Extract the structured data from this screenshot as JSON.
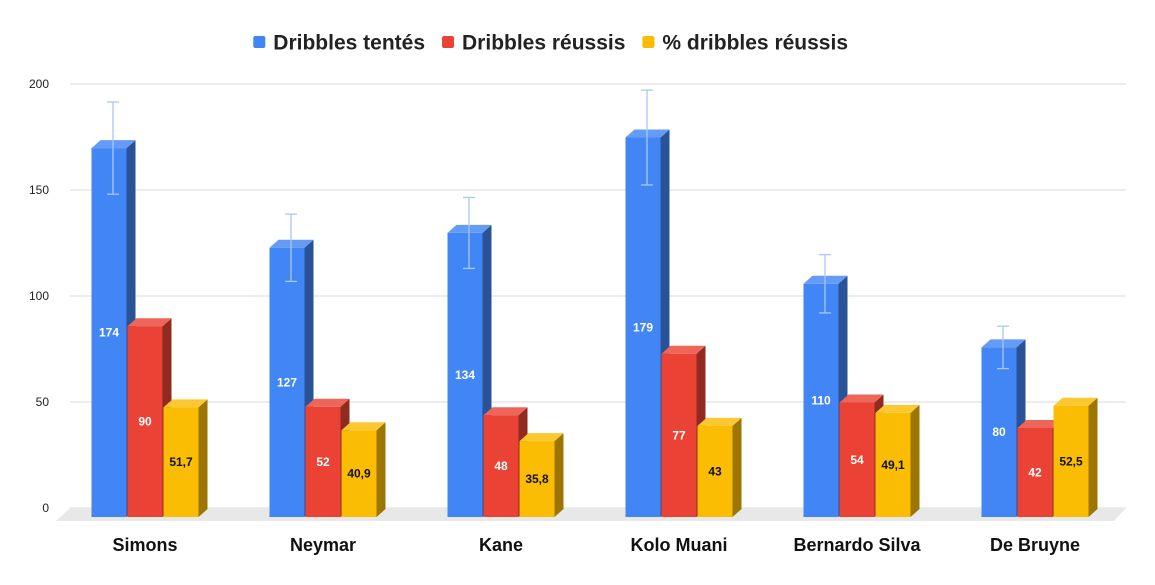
{
  "chart_data": {
    "type": "bar",
    "title": "",
    "xlabel": "",
    "ylabel": "",
    "ylim": [
      0,
      200
    ],
    "yticks": [
      0,
      50,
      100,
      150,
      200
    ],
    "grid": true,
    "legend_position": "top",
    "three_d": true,
    "categories": [
      "Simons",
      "Neymar",
      "Kane",
      "Kolo Muani",
      "Bernardo Silva",
      "De Bruyne"
    ],
    "series": [
      {
        "name": "Dribbles tentés",
        "color": "#4285f4",
        "values": [
          174,
          127,
          134,
          179,
          110,
          80
        ],
        "labels": [
          "174",
          "127",
          "134",
          "179",
          "110",
          "80"
        ],
        "error_bars": true
      },
      {
        "name": "Dribbles réussis",
        "color": "#ea4335",
        "values": [
          90,
          52,
          48,
          77,
          54,
          42
        ],
        "labels": [
          "90",
          "52",
          "48",
          "77",
          "54",
          "42"
        ]
      },
      {
        "name": "% dribbles réussis",
        "color": "#fbbc04",
        "values": [
          51.7,
          40.9,
          35.8,
          43,
          49.1,
          52.5
        ],
        "labels": [
          "51,7",
          "40,9",
          "35,8",
          "43",
          "49,1",
          "52,5"
        ]
      }
    ]
  }
}
